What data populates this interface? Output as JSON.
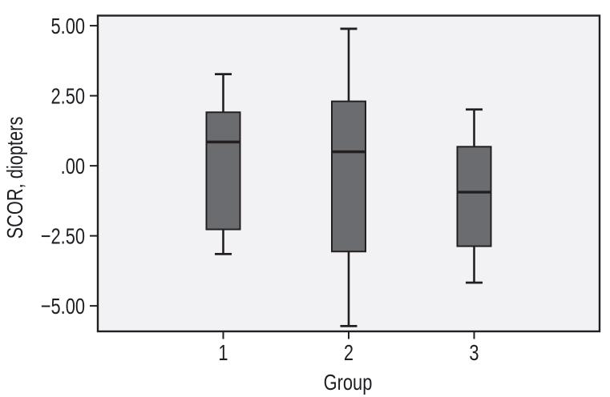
{
  "chart_data": {
    "type": "box",
    "title": "",
    "xlabel": "Group",
    "ylabel": "SCOR, diopters",
    "categories": [
      "1",
      "2",
      "3"
    ],
    "y_ticks": [
      {
        "label": "5.00",
        "value": 5.0
      },
      {
        "label": "2.50",
        "value": 2.5
      },
      {
        "label": ".00",
        "value": 0.0
      },
      {
        "label": "−2.50",
        "value": -2.5
      },
      {
        "label": "−5.00",
        "value": -5.0
      }
    ],
    "ylim": [
      -5.91,
      5.36
    ],
    "grid": false,
    "legend": false,
    "series": [
      {
        "category": "1",
        "whisker_low": -3.15,
        "q1": -2.27,
        "median": 0.85,
        "q3": 1.91,
        "whisker_high": 3.27
      },
      {
        "category": "2",
        "whisker_low": -5.72,
        "q1": -3.06,
        "median": 0.5,
        "q3": 2.3,
        "whisker_high": 4.89
      },
      {
        "category": "3",
        "whisker_low": -4.17,
        "q1": -2.87,
        "median": -0.94,
        "q3": 0.68,
        "whisker_high": 2.01
      }
    ],
    "colors": {
      "box_fill": "#6b6c6f",
      "box_border": "#231f20",
      "median_line": "#231f20",
      "whisker": "#231f20",
      "plot_bg": "#f2f2f4",
      "frame": "#1f2022",
      "text": "#1e1e24",
      "page_bg": "#ffffff"
    }
  }
}
